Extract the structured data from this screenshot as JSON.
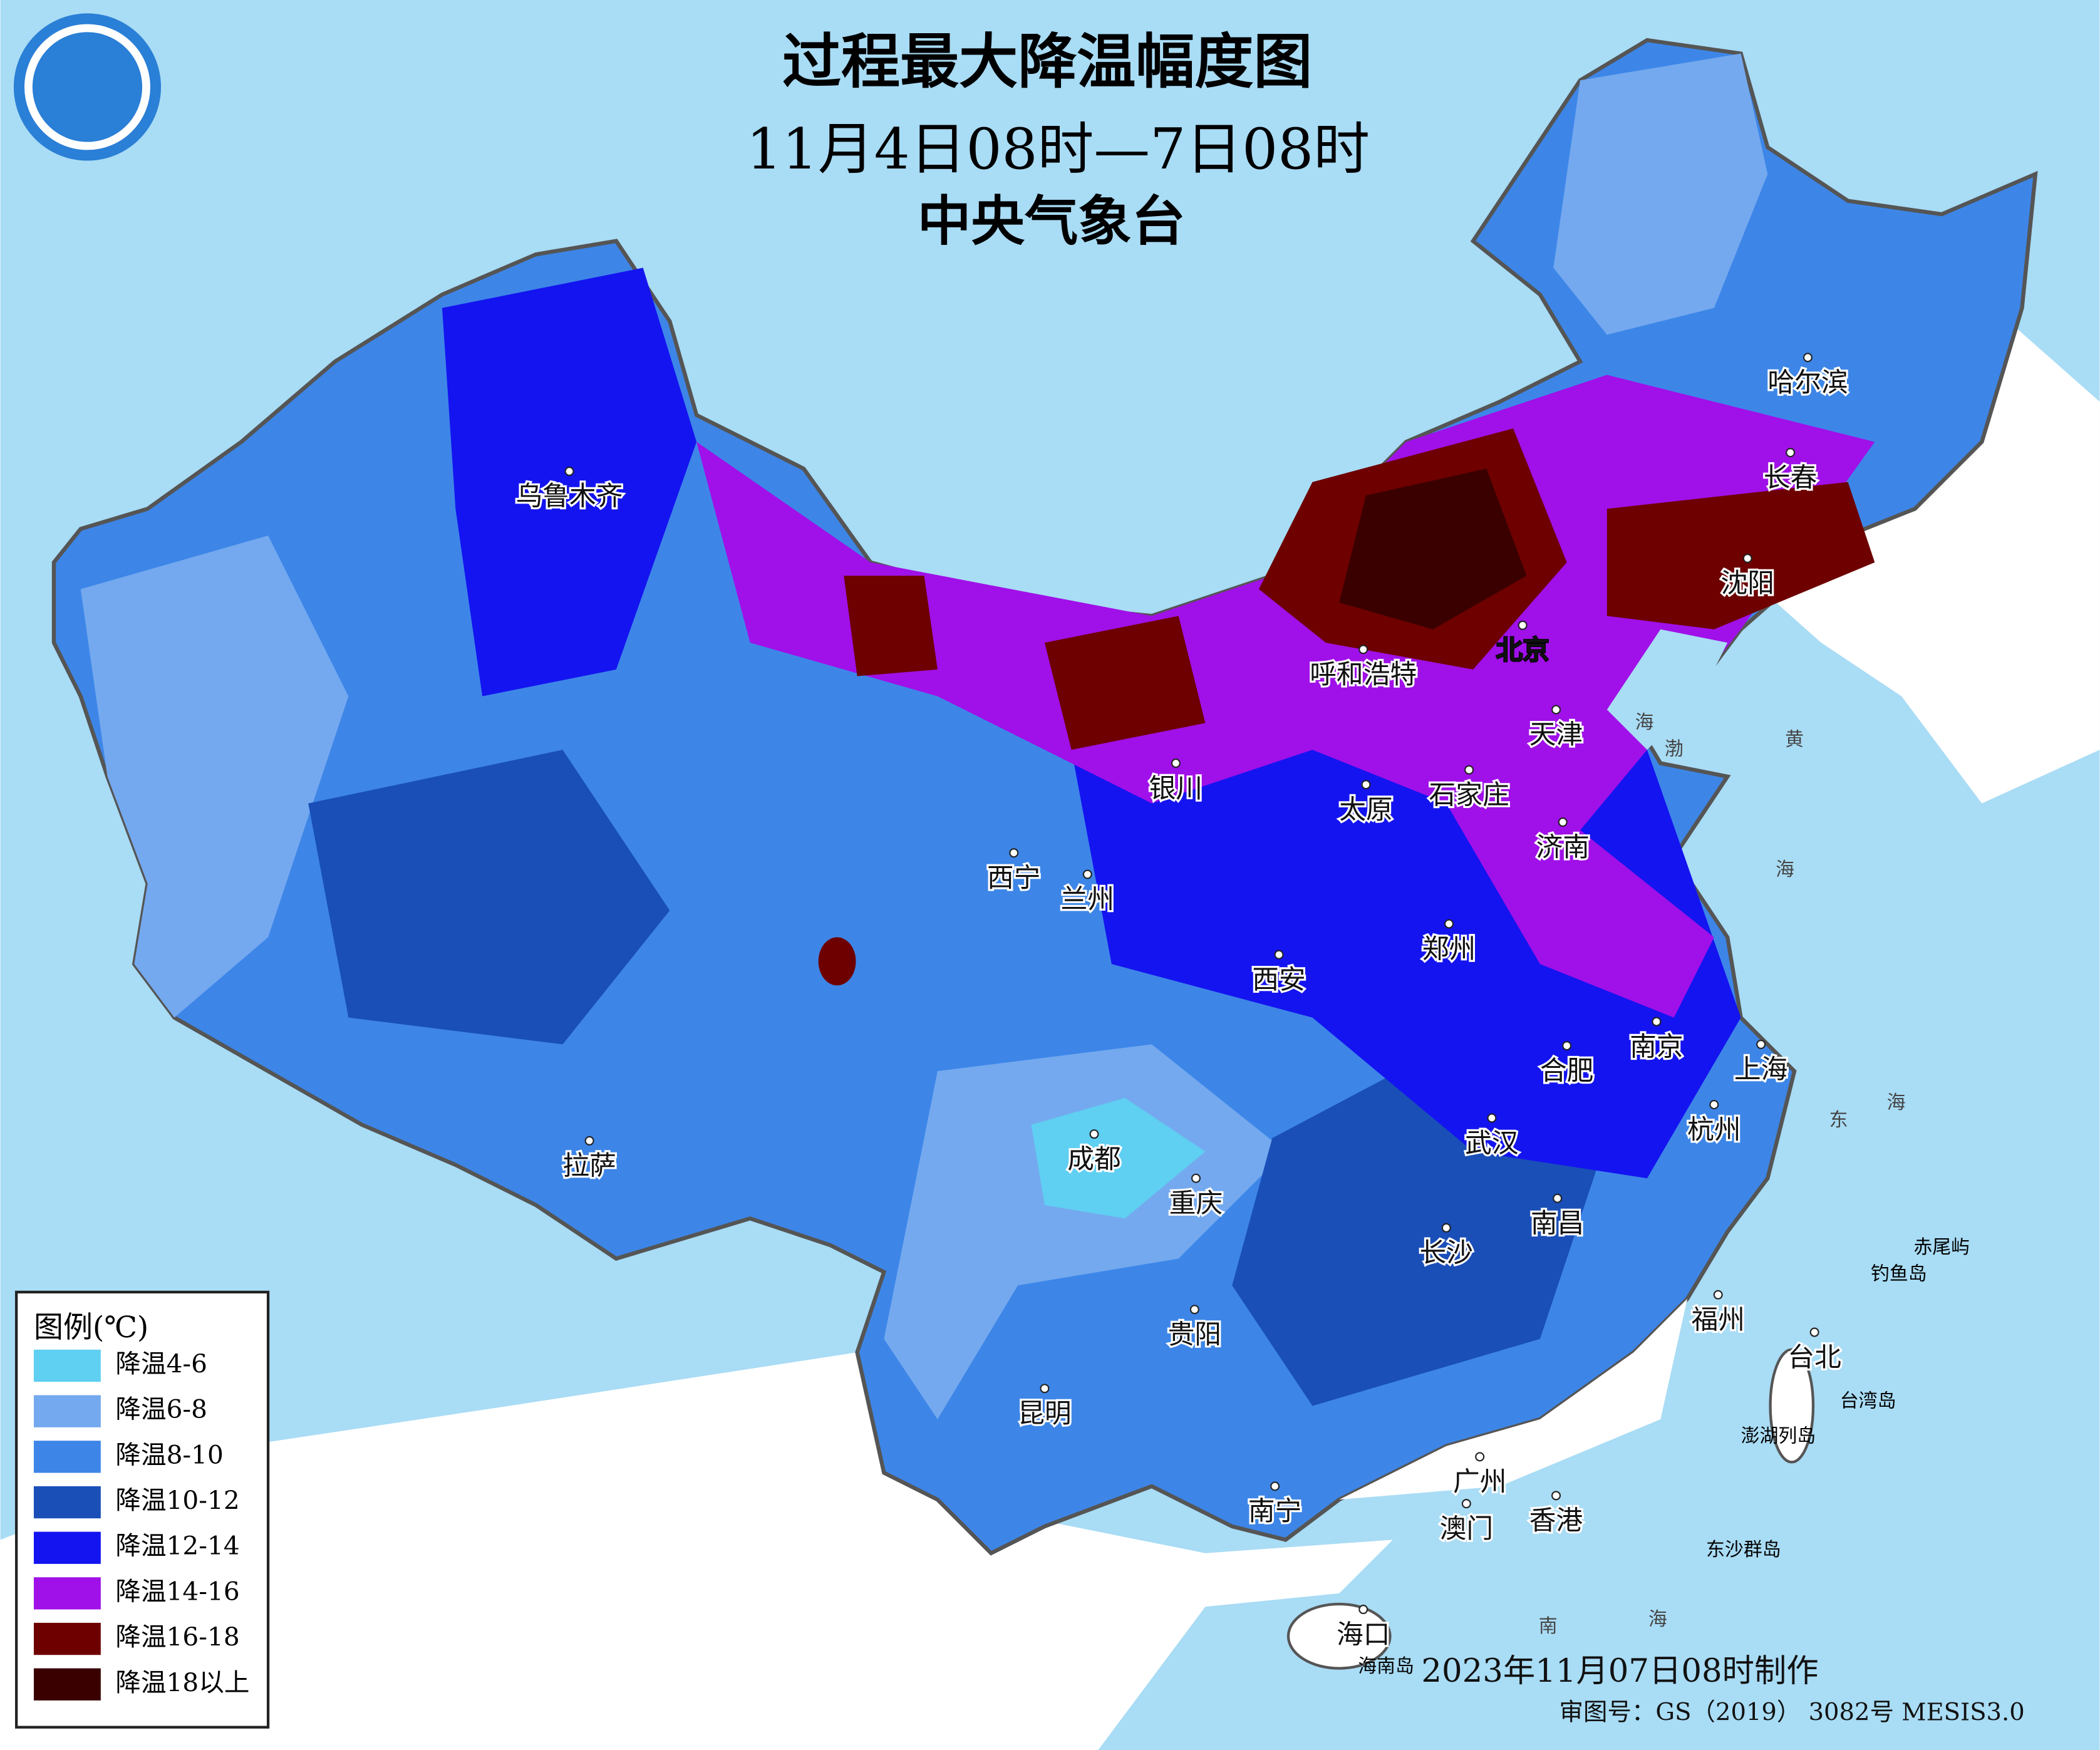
{
  "header": {
    "title": "过程最大降温幅度图",
    "period": "11月4日08时—7日08时",
    "agency": "中央气象台"
  },
  "legend": {
    "title": "图例(℃)",
    "items": [
      {
        "label": "降温4-6",
        "color": "#5fcff2"
      },
      {
        "label": "降温6-8",
        "color": "#74a9ef"
      },
      {
        "label": "降温8-10",
        "color": "#3d86e8"
      },
      {
        "label": "降温10-12",
        "color": "#1a4fb8"
      },
      {
        "label": "降温12-14",
        "color": "#1414f0"
      },
      {
        "label": "降温14-16",
        "color": "#a010e8"
      },
      {
        "label": "降温16-18",
        "color": "#6e0000"
      },
      {
        "label": "降温18以上",
        "color": "#3a0000"
      }
    ]
  },
  "cities": [
    "乌鲁木齐",
    "呼和浩特",
    "北京",
    "天津",
    "石家庄",
    "太原",
    "济南",
    "银川",
    "西宁",
    "兰州",
    "郑州",
    "西安",
    "南京",
    "合肥",
    "上海",
    "杭州",
    "武汉",
    "成都",
    "重庆",
    "拉萨",
    "长沙",
    "南昌",
    "贵阳",
    "福州",
    "台北",
    "昆明",
    "广州",
    "南宁",
    "澳门",
    "香港",
    "海口",
    "长春",
    "哈尔滨",
    "沈阳"
  ],
  "islands": [
    "赤尾屿",
    "钓鱼岛",
    "台湾岛",
    "澎湖列岛",
    "东沙群岛",
    "海南岛"
  ],
  "seas": [
    "渤",
    "海",
    "黄",
    "海",
    "东",
    "海",
    "南",
    "海"
  ],
  "footer": {
    "made": "2023年11月07日08时制作",
    "approval": "审图号：GS（2019） 3082号 MESIS3.0"
  }
}
